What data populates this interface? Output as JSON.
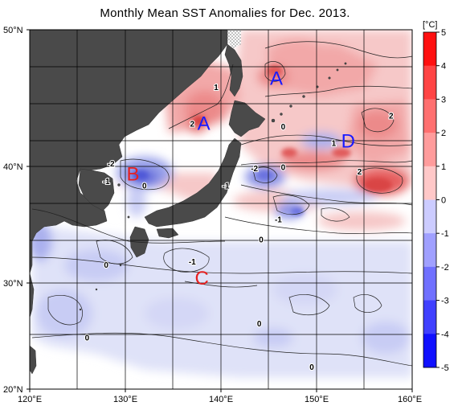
{
  "title": "Monthly Mean SST Anomalies for Dec. 2013.",
  "colorbar": {
    "unit": "[°C]",
    "ticks": [
      "5",
      "4",
      "3",
      "2",
      "1",
      "0",
      "-1",
      "-2",
      "-3",
      "-4",
      "-5"
    ]
  },
  "axes": {
    "lat_labels": [
      "50°N",
      "40°N",
      "30°N",
      "20°N"
    ],
    "lon_labels": [
      "120°E",
      "130°E",
      "140°E",
      "150°E",
      "160°E"
    ]
  },
  "region_labels": [
    {
      "text": "A",
      "color": "#1a1aff",
      "lon": 145.8,
      "lat": 46.5
    },
    {
      "text": "A",
      "color": "#1a1aff",
      "lon": 138.2,
      "lat": 43.2
    },
    {
      "text": "B",
      "color": "#e62020",
      "lon": 130.8,
      "lat": 39.4
    },
    {
      "text": "C",
      "color": "#e62020",
      "lon": 138.0,
      "lat": 30.5
    },
    {
      "text": "D",
      "color": "#1a1aff",
      "lon": 153.3,
      "lat": 41.9
    }
  ],
  "contour_labels": [
    {
      "text": "1",
      "lon": 139.5,
      "lat": 45.6
    },
    {
      "text": "2",
      "lon": 137.0,
      "lat": 42.9
    },
    {
      "text": "0",
      "lon": 146.5,
      "lat": 42.7
    },
    {
      "text": "1",
      "lon": 151.8,
      "lat": 41.5
    },
    {
      "text": "2",
      "lon": 157.8,
      "lat": 43.5
    },
    {
      "text": "2",
      "lon": 154.5,
      "lat": 39.3
    },
    {
      "text": "-2",
      "lon": 128.5,
      "lat": 40.0
    },
    {
      "text": "-1",
      "lon": 128.0,
      "lat": 38.5
    },
    {
      "text": "0",
      "lon": 132.0,
      "lat": 38.1
    },
    {
      "text": "-2",
      "lon": 143.5,
      "lat": 39.6
    },
    {
      "text": "0",
      "lon": 146.5,
      "lat": 39.7
    },
    {
      "text": "-1",
      "lon": 140.5,
      "lat": 38.1
    },
    {
      "text": "-1",
      "lon": 146.0,
      "lat": 35.2
    },
    {
      "text": "0",
      "lon": 144.2,
      "lat": 33.5
    },
    {
      "text": "-1",
      "lon": 137.0,
      "lat": 31.6
    },
    {
      "text": "0",
      "lon": 128.0,
      "lat": 31.3
    },
    {
      "text": "0",
      "lon": 144.0,
      "lat": 25.9
    },
    {
      "text": "0",
      "lon": 126.0,
      "lat": 24.6
    },
    {
      "text": "0",
      "lon": 149.5,
      "lat": 21.8
    }
  ]
}
